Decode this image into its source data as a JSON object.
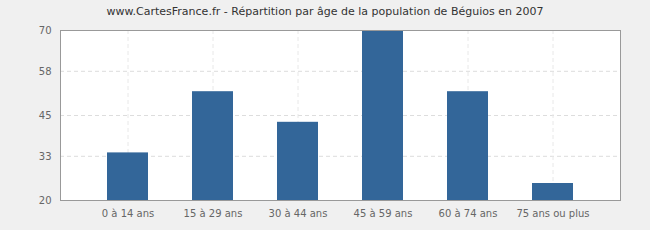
{
  "chart_data": {
    "type": "bar",
    "title": "www.CartesFrance.fr - Répartition par âge de la population de Béguios en 2007",
    "categories": [
      "0 à 14 ans",
      "15 à 29 ans",
      "30 à 44 ans",
      "45 à 59 ans",
      "60 à 74 ans",
      "75 ans ou plus"
    ],
    "values": [
      34,
      52,
      43,
      70,
      52,
      25
    ],
    "color": "#336699",
    "ylim": [
      20,
      70
    ],
    "yticks": [
      20,
      33,
      45,
      58,
      70
    ],
    "grid": true
  }
}
